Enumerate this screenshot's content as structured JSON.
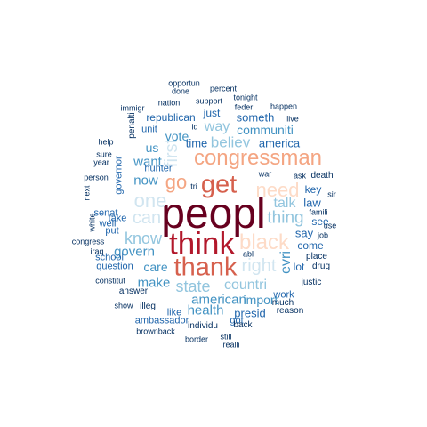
{
  "palette": {
    "darkest": "#67001f",
    "dark_red": "#b2182b",
    "red": "#d6604d",
    "salmon": "#f4a582",
    "peach": "#fddbc7",
    "pale_blue": "#d1e5f0",
    "light_blue": "#92c5de",
    "mid_blue": "#4393c3",
    "blue": "#2166ac",
    "navy": "#053061"
  },
  "words": [
    {
      "id": "peopl",
      "text": "peopl",
      "color": "#67001f"
    },
    {
      "id": "think",
      "text": "think",
      "color": "#b2182b"
    },
    {
      "id": "thank",
      "text": "thank",
      "color": "#d6604d"
    },
    {
      "id": "get",
      "text": "get",
      "color": "#d6604d"
    },
    {
      "id": "congressman",
      "text": "congressman",
      "color": "#f4a582"
    },
    {
      "id": "black",
      "text": "black",
      "color": "#fddbc7"
    },
    {
      "id": "go",
      "text": "go",
      "color": "#f4a582"
    },
    {
      "id": "need",
      "text": "need",
      "color": "#fddbc7"
    },
    {
      "id": "one",
      "text": "one",
      "color": "#d1e5f0"
    },
    {
      "id": "can",
      "text": "can",
      "color": "#d1e5f0"
    },
    {
      "id": "right",
      "text": "right",
      "color": "#d1e5f0"
    },
    {
      "id": "first",
      "text": "first",
      "color": "#d1e5f0"
    },
    {
      "id": "thing",
      "text": "thing",
      "color": "#92c5de"
    },
    {
      "id": "state",
      "text": "state",
      "color": "#92c5de"
    },
    {
      "id": "know",
      "text": "know",
      "color": "#92c5de"
    },
    {
      "id": "believ",
      "text": "believ",
      "color": "#92c5de"
    },
    {
      "id": "talk",
      "text": "talk",
      "color": "#92c5de"
    },
    {
      "id": "countri",
      "text": "countri",
      "color": "#92c5de"
    },
    {
      "id": "way",
      "text": "way",
      "color": "#92c5de"
    },
    {
      "id": "evri",
      "text": "evri",
      "color": "#4393c3"
    },
    {
      "id": "govern",
      "text": "govern",
      "color": "#4393c3"
    },
    {
      "id": "american",
      "text": "american",
      "color": "#4393c3"
    },
    {
      "id": "want",
      "text": "want",
      "color": "#4393c3"
    },
    {
      "id": "now",
      "text": "now",
      "color": "#4393c3"
    },
    {
      "id": "health",
      "text": "health",
      "color": "#4393c3"
    },
    {
      "id": "make",
      "text": "make",
      "color": "#4393c3"
    },
    {
      "id": "vote",
      "text": "vote",
      "color": "#4393c3"
    },
    {
      "id": "communiti",
      "text": "communiti",
      "color": "#4393c3"
    },
    {
      "id": "care",
      "text": "care",
      "color": "#4393c3"
    },
    {
      "id": "import",
      "text": "import",
      "color": "#4393c3"
    },
    {
      "id": "us",
      "text": "us",
      "color": "#4393c3"
    },
    {
      "id": "america",
      "text": "america",
      "color": "#2166ac"
    },
    {
      "id": "someth",
      "text": "someth",
      "color": "#2166ac"
    },
    {
      "id": "time",
      "text": "time",
      "color": "#2166ac"
    },
    {
      "id": "law",
      "text": "law",
      "color": "#2166ac"
    },
    {
      "id": "say",
      "text": "say",
      "color": "#2166ac"
    },
    {
      "id": "presid",
      "text": "presid",
      "color": "#2166ac"
    },
    {
      "id": "republican",
      "text": "republican",
      "color": "#2166ac"
    },
    {
      "id": "just",
      "text": "just",
      "color": "#2166ac"
    },
    {
      "id": "key",
      "text": "key",
      "color": "#2166ac"
    },
    {
      "id": "governor",
      "text": "governor",
      "color": "#2166ac"
    },
    {
      "id": "unit",
      "text": "unit",
      "color": "#2166ac"
    },
    {
      "id": "come",
      "text": "come",
      "color": "#2166ac"
    },
    {
      "id": "lot",
      "text": "lot",
      "color": "#2166ac"
    },
    {
      "id": "question",
      "text": "question",
      "color": "#2166ac"
    },
    {
      "id": "see",
      "text": "see",
      "color": "#2166ac"
    },
    {
      "id": "senat",
      "text": "senat",
      "color": "#2166ac"
    },
    {
      "id": "well",
      "text": "well",
      "color": "#2166ac"
    },
    {
      "id": "take",
      "text": "take",
      "color": "#2166ac"
    },
    {
      "id": "put",
      "text": "put",
      "color": "#2166ac"
    },
    {
      "id": "work",
      "text": "work",
      "color": "#2166ac"
    },
    {
      "id": "hunter",
      "text": "hunter",
      "color": "#2166ac"
    },
    {
      "id": "school",
      "text": "school",
      "color": "#2166ac"
    },
    {
      "id": "ambassador",
      "text": "ambassador",
      "color": "#2166ac"
    },
    {
      "id": "got",
      "text": "got",
      "color": "#2166ac"
    },
    {
      "id": "like",
      "text": "like",
      "color": "#2166ac"
    },
    {
      "id": "place",
      "text": "place",
      "color": "#053061"
    },
    {
      "id": "answer",
      "text": "answer",
      "color": "#053061"
    },
    {
      "id": "much",
      "text": "much",
      "color": "#053061"
    },
    {
      "id": "back",
      "text": "back",
      "color": "#053061"
    },
    {
      "id": "death",
      "text": "death",
      "color": "#053061"
    },
    {
      "id": "penalti",
      "text": "penalti",
      "color": "#053061"
    },
    {
      "id": "justic",
      "text": "justic",
      "color": "#053061"
    },
    {
      "id": "drug",
      "text": "drug",
      "color": "#053061"
    },
    {
      "id": "illeg",
      "text": "illeg",
      "color": "#053061"
    },
    {
      "id": "individu",
      "text": "individu",
      "color": "#053061"
    },
    {
      "id": "reason",
      "text": "reason",
      "color": "#053061"
    },
    {
      "id": "tonight",
      "text": "tonight",
      "color": "#053061"
    },
    {
      "id": "support",
      "text": "support",
      "color": "#053061"
    },
    {
      "id": "nation",
      "text": "nation",
      "color": "#053061"
    },
    {
      "id": "happen",
      "text": "happen",
      "color": "#053061"
    },
    {
      "id": "feder",
      "text": "feder",
      "color": "#053061"
    },
    {
      "id": "war",
      "text": "war",
      "color": "#053061"
    },
    {
      "id": "ask",
      "text": "ask",
      "color": "#053061"
    },
    {
      "id": "famili",
      "text": "famili",
      "color": "#053061"
    },
    {
      "id": "job",
      "text": "job",
      "color": "#053061"
    },
    {
      "id": "use",
      "text": "use",
      "color": "#053061"
    },
    {
      "id": "sir",
      "text": "sir",
      "color": "#053061"
    },
    {
      "id": "abl",
      "text": "abl",
      "color": "#053061"
    },
    {
      "id": "opportun",
      "text": "opportun",
      "color": "#053061"
    },
    {
      "id": "done",
      "text": "done",
      "color": "#053061"
    },
    {
      "id": "percent",
      "text": "percent",
      "color": "#053061"
    },
    {
      "id": "immigr",
      "text": "immigr",
      "color": "#053061"
    },
    {
      "id": "live",
      "text": "live",
      "color": "#053061"
    },
    {
      "id": "help",
      "text": "help",
      "color": "#053061"
    },
    {
      "id": "id",
      "text": "id",
      "color": "#053061"
    },
    {
      "id": "sure",
      "text": "sure",
      "color": "#053061"
    },
    {
      "id": "year",
      "text": "year",
      "color": "#053061"
    },
    {
      "id": "person",
      "text": "person",
      "color": "#053061"
    },
    {
      "id": "next",
      "text": "next",
      "color": "#053061"
    },
    {
      "id": "tri",
      "text": "tri",
      "color": "#053061"
    },
    {
      "id": "white",
      "text": "white",
      "color": "#053061"
    },
    {
      "id": "congress",
      "text": "congress",
      "color": "#053061"
    },
    {
      "id": "iraq",
      "text": "iraq",
      "color": "#053061"
    },
    {
      "id": "constitut",
      "text": "constitut",
      "color": "#053061"
    },
    {
      "id": "show",
      "text": "show",
      "color": "#053061"
    },
    {
      "id": "brownback",
      "text": "brownback",
      "color": "#053061"
    },
    {
      "id": "border",
      "text": "border",
      "color": "#053061"
    },
    {
      "id": "still",
      "text": "still",
      "color": "#053061"
    },
    {
      "id": "realli",
      "text": "realli",
      "color": "#053061"
    }
  ]
}
